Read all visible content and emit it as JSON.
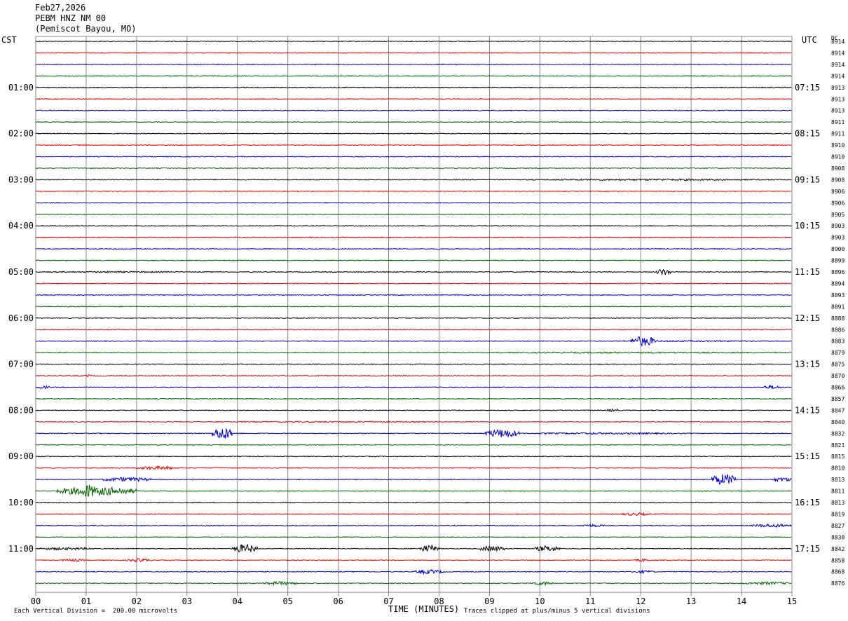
{
  "header": {
    "date": "Feb27,2026",
    "station": "PEBM HNZ NM 00",
    "location": "(Pemiscot Bayou, MO)"
  },
  "left_axis_label": "CST",
  "right_axis_label": "UTC",
  "dc_label": "DC",
  "footer": {
    "scale_note": "Each Vertical Division =  200.00 microvolts",
    "xlabel": "TIME (MINUTES)",
    "clip_note": "Traces clipped at plus/minus 5 vertical divisions"
  },
  "colors": {
    "trace_cycle": [
      "#000000",
      "#ee0000",
      "#0000cc",
      "#006400"
    ],
    "grid": "#888888"
  },
  "chart_data": {
    "type": "line",
    "title": "PEBM HNZ NM 00",
    "xlabel": "TIME (MINUTES)",
    "xlim": [
      0,
      15
    ],
    "x_ticks": [
      "00",
      "01",
      "02",
      "03",
      "04",
      "05",
      "06",
      "07",
      "08",
      "09",
      "10",
      "11",
      "12",
      "13",
      "14",
      "15"
    ],
    "grid": true,
    "rows_per_hour": 4,
    "minutes_per_row": 15,
    "local_time_labels": [
      "01:00",
      "02:00",
      "03:00",
      "04:00",
      "05:00",
      "06:00",
      "07:00",
      "08:00",
      "09:00",
      "10:00",
      "11:00"
    ],
    "utc_time_labels": [
      "07:15",
      "08:15",
      "09:15",
      "10:15",
      "11:15",
      "12:15",
      "13:15",
      "14:15",
      "15:15",
      "16:15",
      "17:15"
    ],
    "dc_offsets": [
      "8914",
      "8914",
      "8914",
      "8914",
      "8913",
      "8913",
      "8913",
      "8911",
      "8911",
      "8910",
      "8910",
      "8908",
      "8908",
      "8906",
      "8906",
      "8905",
      "8903",
      "8903",
      "8900",
      "8899",
      "8896",
      "8894",
      "8893",
      "8891",
      "8888",
      "8886",
      "8883",
      "8879",
      "8875",
      "8870",
      "8866",
      "8857",
      "8847",
      "8840",
      "8832",
      "8821",
      "8815",
      "8810",
      "8813",
      "8811",
      "8813",
      "8819",
      "8827",
      "8838",
      "8842",
      "8858",
      "8868",
      "8876"
    ],
    "events": [
      {
        "row": 12,
        "x0": 9.5,
        "x1": 15.0,
        "amp": 1.2
      },
      {
        "row": 20,
        "x0": 0.0,
        "x1": 3.2,
        "amp": 1.0
      },
      {
        "row": 20,
        "x0": 12.3,
        "x1": 12.6,
        "amp": 4.5
      },
      {
        "row": 26,
        "x0": 11.8,
        "x1": 12.3,
        "amp": 7.0
      },
      {
        "row": 26,
        "x0": 11.0,
        "x1": 15.0,
        "amp": 1.0
      },
      {
        "row": 27,
        "x0": 8.5,
        "x1": 15.0,
        "amp": 1.0
      },
      {
        "row": 29,
        "x0": 1.0,
        "x1": 1.1,
        "amp": 2.5
      },
      {
        "row": 30,
        "x0": 14.4,
        "x1": 14.8,
        "amp": 2.5
      },
      {
        "row": 30,
        "x0": 0.0,
        "x1": 0.3,
        "amp": 2.0
      },
      {
        "row": 32,
        "x0": 11.3,
        "x1": 11.6,
        "amp": 2.0
      },
      {
        "row": 33,
        "x0": 3.5,
        "x1": 8.5,
        "amp": 1.0
      },
      {
        "row": 34,
        "x0": 3.5,
        "x1": 3.9,
        "amp": 9.0
      },
      {
        "row": 34,
        "x0": 8.9,
        "x1": 9.6,
        "amp": 6.0
      },
      {
        "row": 34,
        "x0": 9.6,
        "x1": 13.0,
        "amp": 1.3
      },
      {
        "row": 37,
        "x0": 2.0,
        "x1": 2.8,
        "amp": 2.5
      },
      {
        "row": 38,
        "x0": 1.3,
        "x1": 2.3,
        "amp": 3.0
      },
      {
        "row": 38,
        "x0": 13.4,
        "x1": 13.9,
        "amp": 8.0
      },
      {
        "row": 38,
        "x0": 14.6,
        "x1": 15.0,
        "amp": 3.0
      },
      {
        "row": 39,
        "x0": 0.4,
        "x1": 2.0,
        "amp": 6.0
      },
      {
        "row": 39,
        "x0": 0.9,
        "x1": 1.2,
        "amp": 10.0
      },
      {
        "row": 41,
        "x0": 11.6,
        "x1": 12.2,
        "amp": 2.0
      },
      {
        "row": 42,
        "x0": 10.8,
        "x1": 11.3,
        "amp": 2.0
      },
      {
        "row": 42,
        "x0": 14.2,
        "x1": 15.0,
        "amp": 2.5
      },
      {
        "row": 44,
        "x0": 3.9,
        "x1": 4.4,
        "amp": 6.0
      },
      {
        "row": 44,
        "x0": 7.6,
        "x1": 8.0,
        "amp": 5.0
      },
      {
        "row": 44,
        "x0": 8.8,
        "x1": 9.3,
        "amp": 4.0
      },
      {
        "row": 44,
        "x0": 9.9,
        "x1": 10.4,
        "amp": 4.0
      },
      {
        "row": 44,
        "x0": 0.0,
        "x1": 1.2,
        "amp": 1.8
      },
      {
        "row": 45,
        "x0": 0.5,
        "x1": 1.0,
        "amp": 2.0
      },
      {
        "row": 45,
        "x0": 1.8,
        "x1": 2.3,
        "amp": 2.5
      },
      {
        "row": 45,
        "x0": 11.9,
        "x1": 12.2,
        "amp": 2.0
      },
      {
        "row": 46,
        "x0": 7.5,
        "x1": 8.1,
        "amp": 3.0
      },
      {
        "row": 46,
        "x0": 11.8,
        "x1": 12.3,
        "amp": 2.0
      },
      {
        "row": 47,
        "x0": 4.5,
        "x1": 5.2,
        "amp": 2.5
      },
      {
        "row": 47,
        "x0": 9.8,
        "x1": 10.3,
        "amp": 2.5
      },
      {
        "row": 47,
        "x0": 14.0,
        "x1": 15.0,
        "amp": 2.0
      }
    ]
  }
}
